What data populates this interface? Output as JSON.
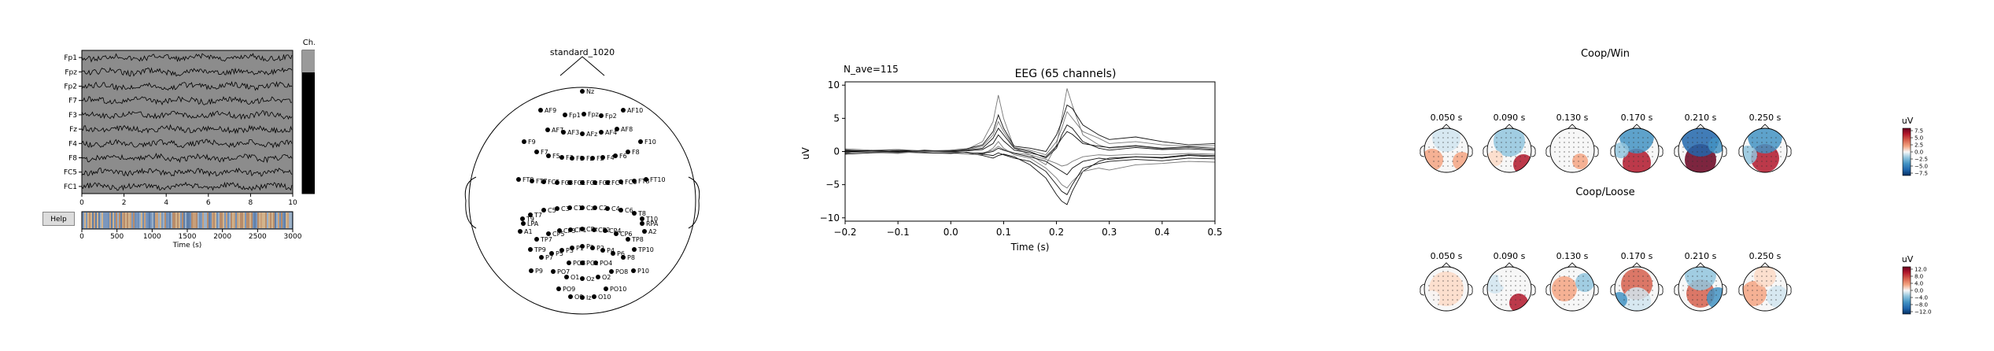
{
  "raw_panel": {
    "channels": [
      "Fp1",
      "Fpz",
      "Fp2",
      "F7",
      "F3",
      "Fz",
      "F4",
      "F8",
      "FC5",
      "FC1"
    ],
    "xticks": [
      "0",
      "2",
      "4",
      "6",
      "8",
      "10"
    ],
    "overview_xticks": [
      "0",
      "500",
      "1000",
      "1500",
      "2000",
      "2500",
      "3000"
    ],
    "overview_xlabel": "Time (s)",
    "selector_label": "Ch.",
    "help_label": "Help",
    "trace_color": "#000000",
    "background_color": "#8c8c8c"
  },
  "sensor_panel": {
    "title": "standard_1020",
    "sensors": [
      "Nz",
      "AF9",
      "Fp1",
      "Fpz",
      "Fp2",
      "AF10",
      "AF7",
      "AF3",
      "AF4",
      "AF8",
      "AFz",
      "F9",
      "F10",
      "F7",
      "F5",
      "F3",
      "F1",
      "Fz",
      "F2",
      "F4",
      "F6",
      "F8",
      "FT9",
      "FT7",
      "FC5",
      "FC3",
      "FC1",
      "FCz",
      "FC2",
      "FC4",
      "FC6",
      "FT8",
      "FT10",
      "T9",
      "T7",
      "C5",
      "C3",
      "C1",
      "Cz",
      "C2",
      "C4",
      "C6",
      "T8",
      "T10",
      "LPA",
      "RPA",
      "A1",
      "A2",
      "CP5",
      "CP3",
      "CP1",
      "CPz",
      "CP2",
      "CP4",
      "CP6",
      "TP7",
      "TP8",
      "TP9",
      "TP10",
      "P9",
      "P7",
      "P5",
      "P3",
      "P1",
      "Pz",
      "P2",
      "P4",
      "P6",
      "P8",
      "P10",
      "PO7",
      "PO3",
      "POz",
      "PO4",
      "PO8",
      "PO9",
      "PO10",
      "O1",
      "Oz",
      "O2",
      "O9",
      "O10",
      "Iz"
    ]
  },
  "chart_data": [
    {
      "type": "line",
      "title": "EEG (65 channels)",
      "annotation": "N_ave=115",
      "xlabel": "Time (s)",
      "ylabel": "uV",
      "xlim": [
        -0.2,
        0.5
      ],
      "ylim": [
        -10.5,
        10.5
      ],
      "xticks": [
        "−0.2",
        "−0.1",
        "0.0",
        "0.1",
        "0.2",
        "0.3",
        "0.4",
        "0.5"
      ],
      "yticks": [
        "10",
        "5",
        "0",
        "−5",
        "−10"
      ],
      "grid": false,
      "x": [
        -0.2,
        -0.15,
        -0.1,
        -0.05,
        0.0,
        0.03,
        0.06,
        0.08,
        0.09,
        0.1,
        0.12,
        0.15,
        0.18,
        0.2,
        0.21,
        0.22,
        0.23,
        0.25,
        0.28,
        0.3,
        0.35,
        0.4,
        0.45,
        0.5
      ],
      "series": [
        {
          "values": [
            0.3,
            -0.2,
            0.2,
            -0.1,
            0.1,
            0.3,
            1.5,
            4.5,
            8.5,
            5.0,
            0.5,
            -0.5,
            -2.0,
            1.0,
            5.0,
            9.5,
            7.0,
            2.5,
            1.0,
            0.5,
            0.8,
            0.4,
            0.6,
            0.3
          ]
        },
        {
          "values": [
            -0.3,
            0.2,
            -0.2,
            0.1,
            -0.1,
            -0.2,
            -0.6,
            -1.0,
            -0.6,
            -0.4,
            -0.8,
            -2.0,
            -4.0,
            -6.5,
            -7.5,
            -8.0,
            -6.0,
            -3.0,
            -1.5,
            -1.0,
            -0.8,
            -1.0,
            -0.6,
            -0.8
          ]
        },
        {
          "values": [
            0.2,
            0.1,
            0.3,
            -0.1,
            0.2,
            0.4,
            1.0,
            3.0,
            5.5,
            3.5,
            0.8,
            0.5,
            0.0,
            2.5,
            4.5,
            7.0,
            6.5,
            4.0,
            2.5,
            1.8,
            2.2,
            1.5,
            1.0,
            1.2
          ]
        },
        {
          "values": [
            -0.2,
            -0.1,
            -0.3,
            0.1,
            -0.2,
            -0.4,
            -0.5,
            0.5,
            1.5,
            0.5,
            -0.5,
            -1.0,
            -2.5,
            -4.0,
            -5.0,
            -5.5,
            -4.5,
            -3.0,
            -2.5,
            -2.8,
            -2.0,
            -1.8,
            -1.5,
            -1.6
          ]
        },
        {
          "values": [
            0.1,
            0.0,
            0.1,
            0.0,
            0.1,
            0.2,
            0.5,
            2.0,
            3.5,
            2.5,
            0.5,
            0.0,
            -1.0,
            0.5,
            2.5,
            4.0,
            3.5,
            1.5,
            0.5,
            0.2,
            0.6,
            0.3,
            0.4,
            0.2
          ]
        },
        {
          "values": [
            -0.1,
            0.1,
            -0.1,
            0.2,
            0.0,
            -0.2,
            -0.3,
            0.0,
            0.5,
            0.2,
            -0.3,
            -0.8,
            -1.5,
            -2.5,
            -3.0,
            -3.5,
            -2.5,
            -1.5,
            -1.0,
            -1.2,
            -0.8,
            -0.9,
            -0.5,
            -0.6
          ]
        },
        {
          "values": [
            0.4,
            0.2,
            0.3,
            0.1,
            0.2,
            0.3,
            0.8,
            2.5,
            4.5,
            3.0,
            0.6,
            0.2,
            -0.5,
            1.5,
            3.5,
            6.0,
            5.0,
            3.0,
            2.0,
            1.2,
            1.5,
            1.0,
            0.8,
            0.9
          ]
        },
        {
          "values": [
            -0.4,
            -0.2,
            -0.1,
            -0.2,
            -0.3,
            -0.1,
            -0.4,
            -0.6,
            -0.2,
            -0.5,
            -1.0,
            -1.5,
            -3.0,
            -5.0,
            -6.0,
            -6.5,
            -5.0,
            -2.5,
            -1.8,
            -1.5,
            -1.2,
            -1.4,
            -1.0,
            -1.1
          ]
        },
        {
          "values": [
            0.0,
            0.1,
            0.0,
            0.1,
            0.0,
            0.1,
            0.3,
            1.2,
            2.5,
            1.6,
            0.2,
            -0.2,
            -0.8,
            0.8,
            2.0,
            3.0,
            2.6,
            1.2,
            0.8,
            0.6,
            0.9,
            0.5,
            0.7,
            0.5
          ]
        },
        {
          "values": [
            -0.2,
            0.0,
            -0.2,
            0.0,
            -0.1,
            -0.2,
            -0.2,
            0.2,
            0.8,
            0.3,
            -0.2,
            -0.5,
            -1.2,
            -1.8,
            -2.2,
            -2.0,
            -1.5,
            -0.8,
            -0.5,
            -0.6,
            -0.4,
            -0.5,
            -0.3,
            -0.4
          ]
        }
      ]
    }
  ],
  "topomap_panel": {
    "unit": "uV",
    "times": [
      "0.050 s",
      "0.090 s",
      "0.130 s",
      "0.170 s",
      "0.210 s",
      "0.250 s"
    ],
    "colormap": [
      "#053061",
      "#2166ac",
      "#4393c3",
      "#92c5de",
      "#d1e5f0",
      "#f7f7f7",
      "#fddbc7",
      "#f4a582",
      "#d6604d",
      "#b2182b",
      "#67001f"
    ],
    "rows": [
      {
        "title": "Coop/Win",
        "colorbar_ticks": [
          "7.5",
          "5.0",
          "2.5",
          "0.0",
          "−2.5",
          "−5.0",
          "−7.5"
        ]
      },
      {
        "title": "Coop/Loose",
        "colorbar_ticks": [
          "12.0",
          "8.0",
          "4.0",
          "0.0",
          "−4.0",
          "−8.0",
          "−12.0"
        ]
      }
    ]
  }
}
